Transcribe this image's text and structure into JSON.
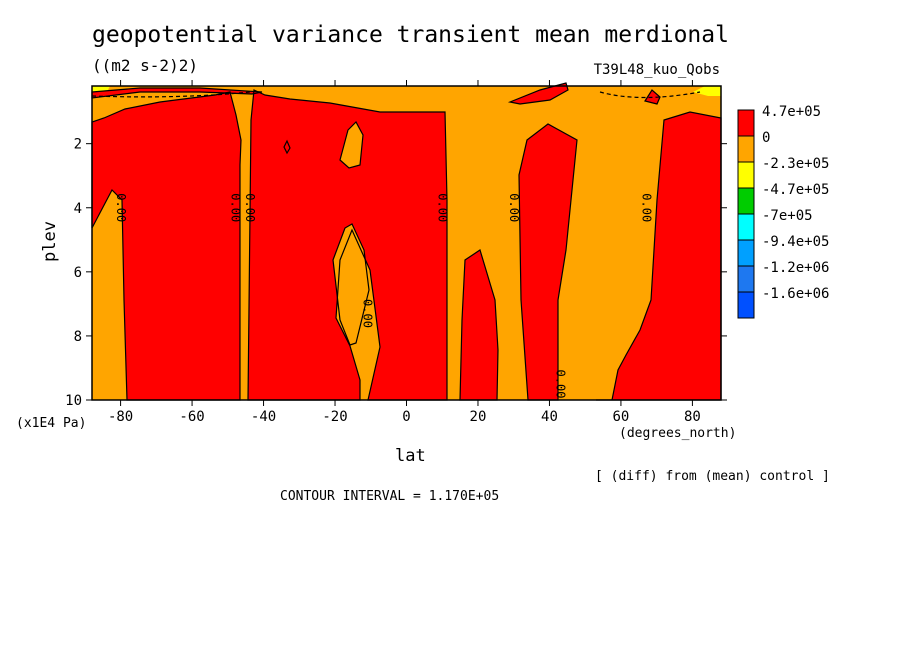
{
  "chart_data": {
    "type": "heatmap",
    "title": "geopotential variance transient mean merdional",
    "units": "((m2 s-2)2)",
    "run_label": "T39L48_kuo_Qobs",
    "xlabel": "lat",
    "x_units": "(degrees_north)",
    "ylabel": "plev",
    "y_scale_label": "(x1E4 Pa)",
    "x_ticks": [
      -80,
      -60,
      -40,
      -20,
      0,
      20,
      40,
      60,
      80
    ],
    "x_tick_labels": [
      "-80",
      "-60",
      "-40",
      "-20",
      "0",
      "20",
      "40",
      "60",
      "80"
    ],
    "y_ticks": [
      2,
      4,
      6,
      8,
      10
    ],
    "y_tick_labels": [
      "2",
      "4",
      "6",
      "8",
      "10"
    ],
    "xlim": [
      -88,
      88
    ],
    "ylim": [
      10,
      0.2
    ],
    "legend": {
      "placement": "right",
      "levels": [
        {
          "label": "4.7e+05",
          "color": "#ff0000"
        },
        {
          "label": "0",
          "color": "#ffa500"
        },
        {
          "label": "-2.3e+05",
          "color": "#ffff00"
        },
        {
          "label": "-4.7e+05",
          "color": "#00cc00"
        },
        {
          "label": "-7e+05",
          "color": "#00ffff"
        },
        {
          "label": "-9.4e+05",
          "color": "#00a0ff"
        },
        {
          "label": "-1.2e+06",
          "color": "#1e78f0"
        },
        {
          "label": "-1.6e+06",
          "color": "#0050ff"
        }
      ]
    },
    "contour_labels": [
      {
        "text": "0.00",
        "lat": -80,
        "plev": 4.0
      },
      {
        "text": "0.00",
        "lat": -48,
        "plev": 4.0
      },
      {
        "text": "0.00",
        "lat": -44,
        "plev": 4.0
      },
      {
        "text": "0.00",
        "lat": -11,
        "plev": 7.3
      },
      {
        "text": "0.00",
        "lat": 10,
        "plev": 4.0
      },
      {
        "text": "0.00",
        "lat": 30,
        "plev": 4.0
      },
      {
        "text": "0.00",
        "lat": 43,
        "plev": 9.5
      },
      {
        "text": "0.00",
        "lat": 67,
        "plev": 4.0
      }
    ],
    "note": "[ (diff) from (mean) control ]",
    "contour_interval": "CONTOUR INTERVAL = 1.170E+05"
  }
}
